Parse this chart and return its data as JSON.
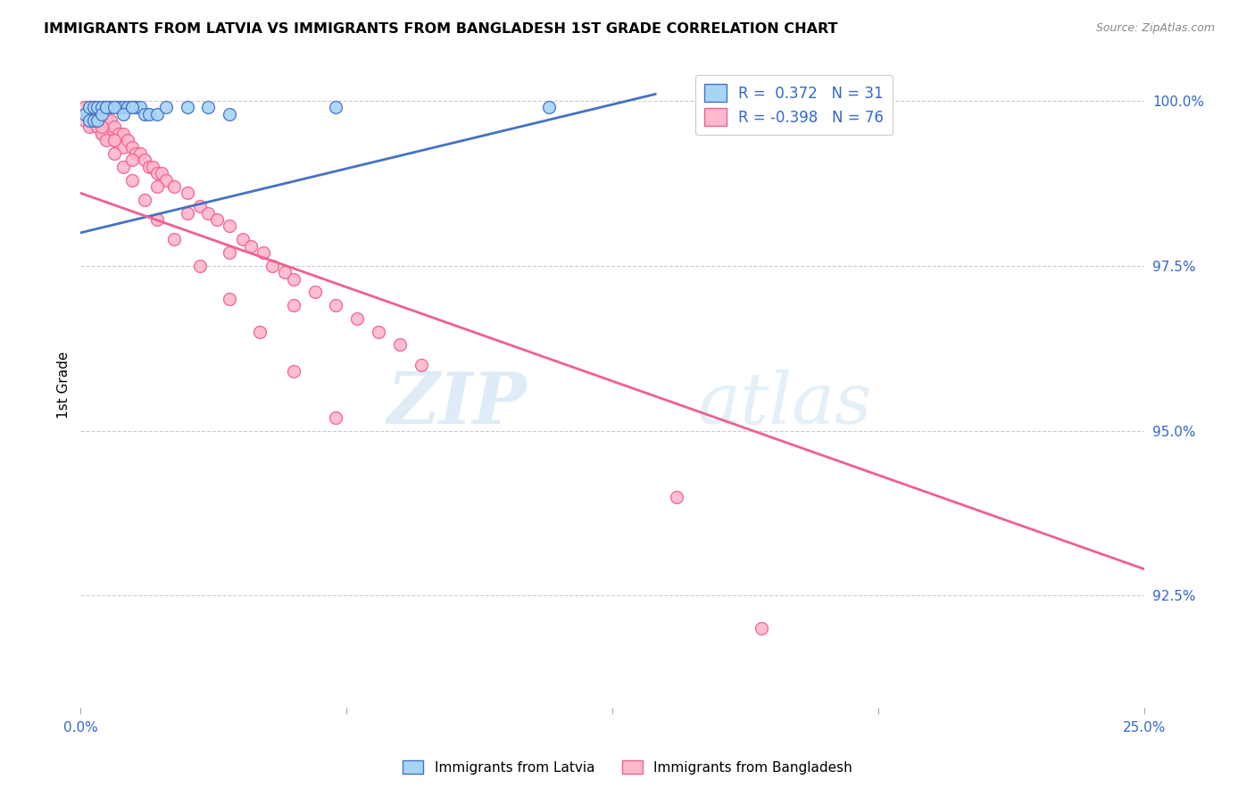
{
  "title": "IMMIGRANTS FROM LATVIA VS IMMIGRANTS FROM BANGLADESH 1ST GRADE CORRELATION CHART",
  "source": "Source: ZipAtlas.com",
  "ylabel": "1st Grade",
  "ylabel_ticks": [
    "100.0%",
    "97.5%",
    "95.0%",
    "92.5%"
  ],
  "ylabel_tick_values": [
    1.0,
    0.975,
    0.95,
    0.925
  ],
  "xlim": [
    0.0,
    0.25
  ],
  "ylim": [
    0.908,
    1.006
  ],
  "legend_latvia": "R =  0.372   N = 31",
  "legend_bangladesh": "R = -0.398   N = 76",
  "latvia_color": "#A8D4F5",
  "bangladesh_color": "#FFB8CC",
  "line_latvia_color": "#4472C4",
  "line_bangladesh_color": "#F06090",
  "watermark_zip": "ZIP",
  "watermark_atlas": "atlas",
  "latvia_line_x": [
    0.0,
    0.135
  ],
  "latvia_line_y": [
    0.98,
    1.001
  ],
  "bangladesh_line_x": [
    0.0,
    0.25
  ],
  "bangladesh_line_y": [
    0.986,
    0.929
  ],
  "latvia_points_x": [
    0.001,
    0.002,
    0.003,
    0.004,
    0.005,
    0.006,
    0.007,
    0.008,
    0.009,
    0.01,
    0.011,
    0.012,
    0.013,
    0.014,
    0.015,
    0.016,
    0.018,
    0.02,
    0.025,
    0.03,
    0.002,
    0.003,
    0.004,
    0.005,
    0.006,
    0.008,
    0.01,
    0.012,
    0.035,
    0.06,
    0.11
  ],
  "latvia_points_y": [
    0.998,
    0.999,
    0.999,
    0.999,
    0.999,
    0.999,
    0.999,
    0.999,
    0.999,
    0.999,
    0.999,
    0.999,
    0.999,
    0.999,
    0.998,
    0.998,
    0.998,
    0.999,
    0.999,
    0.999,
    0.997,
    0.997,
    0.997,
    0.998,
    0.999,
    0.999,
    0.998,
    0.999,
    0.998,
    0.999,
    0.999
  ],
  "bangladesh_points_x": [
    0.001,
    0.001,
    0.001,
    0.002,
    0.002,
    0.002,
    0.003,
    0.003,
    0.003,
    0.004,
    0.004,
    0.005,
    0.005,
    0.006,
    0.006,
    0.007,
    0.007,
    0.008,
    0.008,
    0.009,
    0.01,
    0.01,
    0.011,
    0.012,
    0.013,
    0.014,
    0.015,
    0.016,
    0.017,
    0.018,
    0.019,
    0.02,
    0.022,
    0.025,
    0.028,
    0.03,
    0.032,
    0.035,
    0.038,
    0.04,
    0.043,
    0.045,
    0.048,
    0.05,
    0.055,
    0.06,
    0.065,
    0.07,
    0.075,
    0.08,
    0.002,
    0.003,
    0.004,
    0.005,
    0.006,
    0.008,
    0.01,
    0.012,
    0.015,
    0.018,
    0.022,
    0.028,
    0.035,
    0.042,
    0.05,
    0.06,
    0.003,
    0.005,
    0.008,
    0.012,
    0.018,
    0.025,
    0.035,
    0.05,
    0.14,
    0.16
  ],
  "bangladesh_points_y": [
    0.998,
    0.999,
    0.997,
    0.999,
    0.998,
    0.996,
    0.999,
    0.998,
    0.997,
    0.998,
    0.996,
    0.997,
    0.995,
    0.997,
    0.995,
    0.997,
    0.995,
    0.996,
    0.994,
    0.995,
    0.995,
    0.993,
    0.994,
    0.993,
    0.992,
    0.992,
    0.991,
    0.99,
    0.99,
    0.989,
    0.989,
    0.988,
    0.987,
    0.986,
    0.984,
    0.983,
    0.982,
    0.981,
    0.979,
    0.978,
    0.977,
    0.975,
    0.974,
    0.973,
    0.971,
    0.969,
    0.967,
    0.965,
    0.963,
    0.96,
    0.998,
    0.997,
    0.996,
    0.995,
    0.994,
    0.992,
    0.99,
    0.988,
    0.985,
    0.982,
    0.979,
    0.975,
    0.97,
    0.965,
    0.959,
    0.952,
    0.998,
    0.996,
    0.994,
    0.991,
    0.987,
    0.983,
    0.977,
    0.969,
    0.94,
    0.92
  ]
}
